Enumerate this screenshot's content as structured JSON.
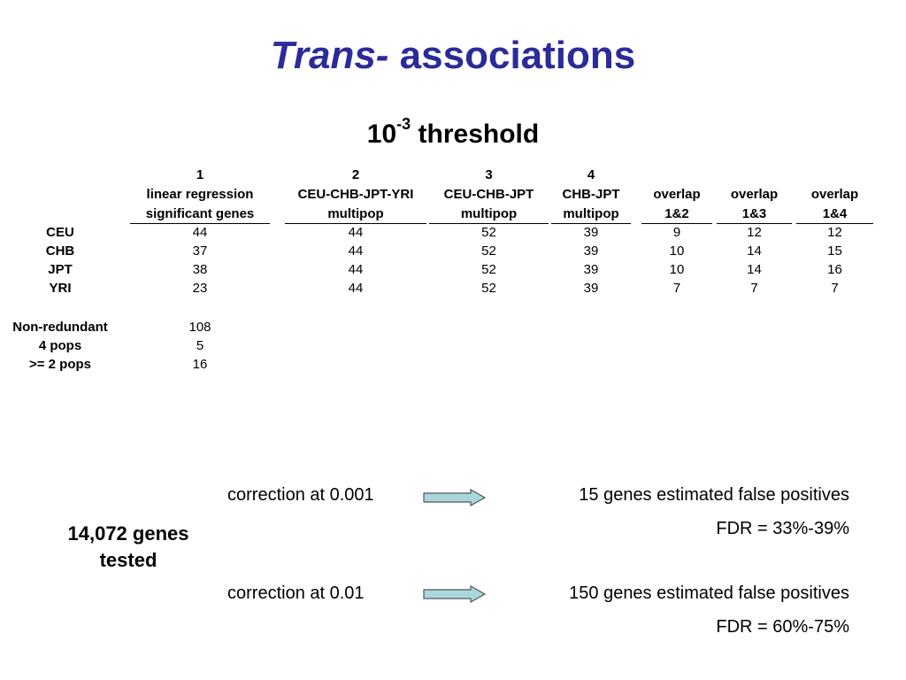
{
  "title": {
    "italic": "Trans-",
    "rest": " associations"
  },
  "threshold": {
    "base": "10",
    "exp": "-3",
    "word": " threshold"
  },
  "table": {
    "columns": [
      {
        "num": "1",
        "l1": "linear regression",
        "l2": "significant genes"
      },
      {
        "num": "2",
        "l1": "CEU-CHB-JPT-YRI",
        "l2": "multipop"
      },
      {
        "num": "3",
        "l1": "CEU-CHB-JPT",
        "l2": "multipop"
      },
      {
        "num": "4",
        "l1": "CHB-JPT",
        "l2": "multipop"
      },
      {
        "num": "",
        "l1": "overlap",
        "l2": "1&2"
      },
      {
        "num": "",
        "l1": "overlap",
        "l2": "1&3"
      },
      {
        "num": "",
        "l1": "overlap",
        "l2": "1&4"
      }
    ],
    "rows": [
      {
        "label": "CEU",
        "values": [
          "44",
          "44",
          "52",
          "39",
          "9",
          "12",
          "12"
        ]
      },
      {
        "label": "CHB",
        "values": [
          "37",
          "44",
          "52",
          "39",
          "10",
          "14",
          "15"
        ]
      },
      {
        "label": "JPT",
        "values": [
          "38",
          "44",
          "52",
          "39",
          "10",
          "14",
          "16"
        ]
      },
      {
        "label": "YRI",
        "values": [
          "23",
          "44",
          "52",
          "39",
          "7",
          "7",
          "7"
        ]
      }
    ],
    "summary": [
      {
        "label": "Non-redundant",
        "value": "108"
      },
      {
        "label": "4 pops",
        "value": "5"
      },
      {
        "label": ">= 2 pops",
        "value": "16"
      }
    ]
  },
  "genes_tested": {
    "line1": "14,072 genes",
    "line2": "tested"
  },
  "corrections": [
    {
      "label": "correction at 0.001",
      "result": "15 genes estimated false positives",
      "fdr": "FDR = 33%-39%"
    },
    {
      "label": "correction at 0.01",
      "result": "150 genes estimated false positives",
      "fdr": "FDR = 60%-75%"
    }
  ],
  "colors": {
    "title": "#2b2b9a",
    "arrow_fill": "#a8d8dc",
    "arrow_stroke": "#555555"
  }
}
